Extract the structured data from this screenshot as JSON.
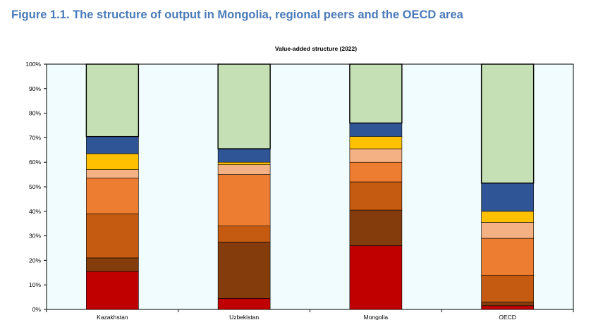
{
  "figure": {
    "title": "Figure 1.1. The structure of output in Mongolia, regional peers and the OECD area"
  },
  "chart_data": {
    "type": "bar",
    "stacked": true,
    "title": "Value-added structure (2022)",
    "categories": [
      "Kazakhstan",
      "Uzbekistan",
      "Mongolia",
      "OECD"
    ],
    "ylim": [
      0,
      100
    ],
    "yticks": [
      "0%",
      "10%",
      "20%",
      "30%",
      "40%",
      "50%",
      "60%",
      "70%",
      "80%",
      "90%",
      "100%"
    ],
    "xlabel": "",
    "ylabel": "",
    "legend": "none",
    "grid": false,
    "colors": {
      "plot_background": "#f0fcfd",
      "title_text": "#4a7ab8"
    },
    "series": [
      {
        "color": "#c00000",
        "values": [
          15.5,
          4.5,
          26.0,
          1.5
        ]
      },
      {
        "color": "#843c0c",
        "values": [
          5.5,
          23.0,
          14.5,
          1.5
        ]
      },
      {
        "color": "#c55a11",
        "values": [
          18.0,
          6.5,
          11.5,
          11.0
        ]
      },
      {
        "color": "#ed7d31",
        "values": [
          14.5,
          21.0,
          8.0,
          15.0
        ]
      },
      {
        "color": "#f4b183",
        "values": [
          3.5,
          4.0,
          5.5,
          6.5
        ]
      },
      {
        "color": "#ffc000",
        "values": [
          6.5,
          1.0,
          5.0,
          4.5
        ]
      },
      {
        "color": "#2f5597",
        "values": [
          7.0,
          5.5,
          5.5,
          11.5
        ]
      },
      {
        "color": "#c5e0b4",
        "values": [
          29.5,
          34.5,
          24.0,
          48.5
        ]
      }
    ]
  }
}
